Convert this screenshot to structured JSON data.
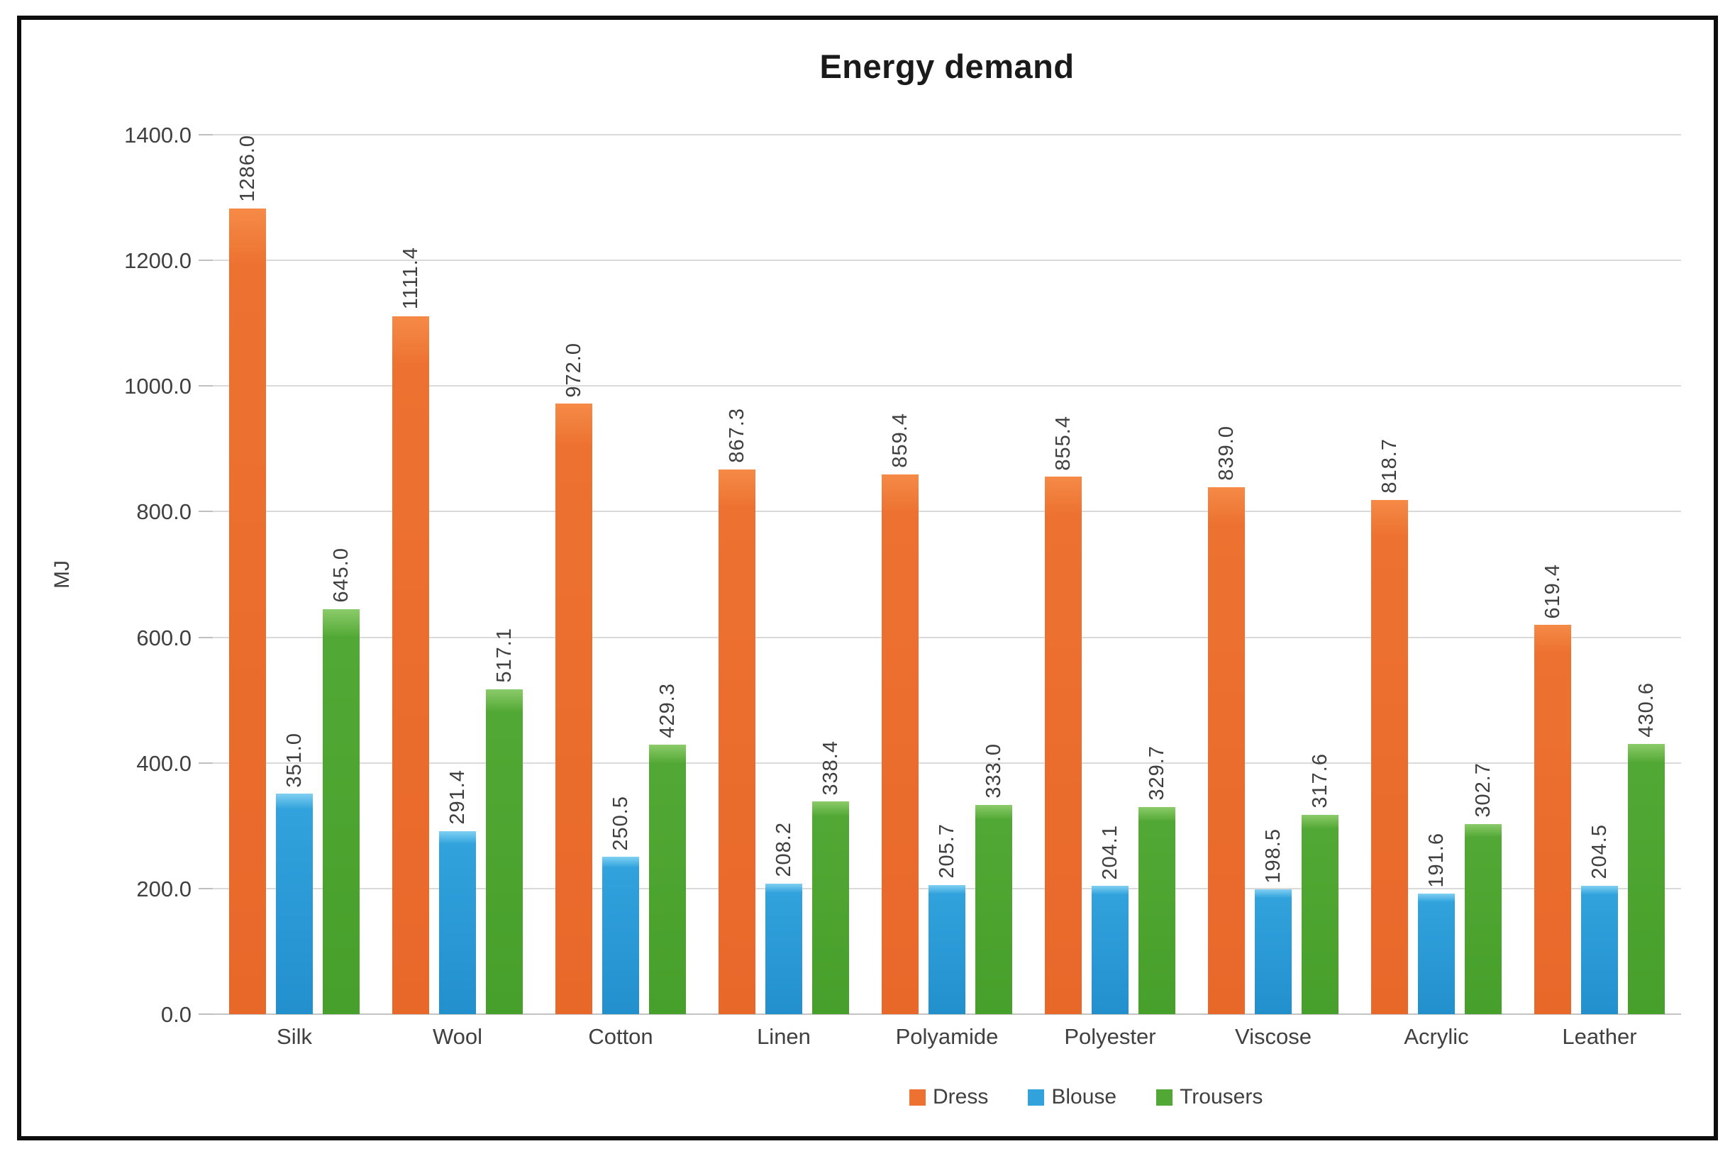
{
  "title": "Energy demand",
  "y_axis": {
    "label": "MJ",
    "ticks": [
      "1400.0",
      "1200.0",
      "1000.0",
      "800.0",
      "600.0",
      "400.0",
      "200.0",
      "0.0"
    ],
    "max": 1400,
    "step": 200
  },
  "legend": {
    "position": "bottom",
    "items": [
      "Dress",
      "Blouse",
      "Trousers"
    ]
  },
  "colors": {
    "dress": "#ED7231",
    "dress_top": "#F58A46",
    "dress_bottom": "#E8682A",
    "blouse": "#31A2DC",
    "blouse_top": "#7FD0F2",
    "blouse_bottom": "#2390CE",
    "trousers": "#52A834",
    "trousers_top": "#8BCB6A",
    "trousers_bottom": "#47A02B",
    "gridline": "#DADADA",
    "frame": "#0D0D0D",
    "text": "#404040"
  },
  "chart_data": {
    "type": "bar",
    "title": "Energy demand",
    "xlabel": "",
    "ylabel": "MJ",
    "ylim": [
      0,
      1400
    ],
    "grid": true,
    "legend_position": "bottom",
    "data_labels": "rotated 90deg, one decimal",
    "categories": [
      "Silk",
      "Wool",
      "Cotton",
      "Linen",
      "Polyamide",
      "Polyester",
      "Viscose",
      "Acrylic",
      "Leather"
    ],
    "series": [
      {
        "name": "Dress",
        "color": "#ED7231",
        "color_top": "#F58A46",
        "color_bottom": "#E8682A",
        "values": [
          1286.0,
          1111.4,
          972.0,
          867.3,
          859.4,
          855.4,
          839.0,
          818.7,
          619.4
        ]
      },
      {
        "name": "Blouse",
        "color": "#31A2DC",
        "color_top": "#7FD0F2",
        "color_bottom": "#2390CE",
        "values": [
          351.0,
          291.4,
          250.5,
          208.2,
          205.7,
          204.1,
          198.5,
          191.6,
          204.5
        ]
      },
      {
        "name": "Trousers",
        "color": "#52A834",
        "color_top": "#8BCB6A",
        "color_bottom": "#47A02B",
        "values": [
          645.0,
          517.1,
          429.3,
          338.4,
          333.0,
          329.7,
          317.6,
          302.7,
          430.6
        ]
      }
    ]
  }
}
